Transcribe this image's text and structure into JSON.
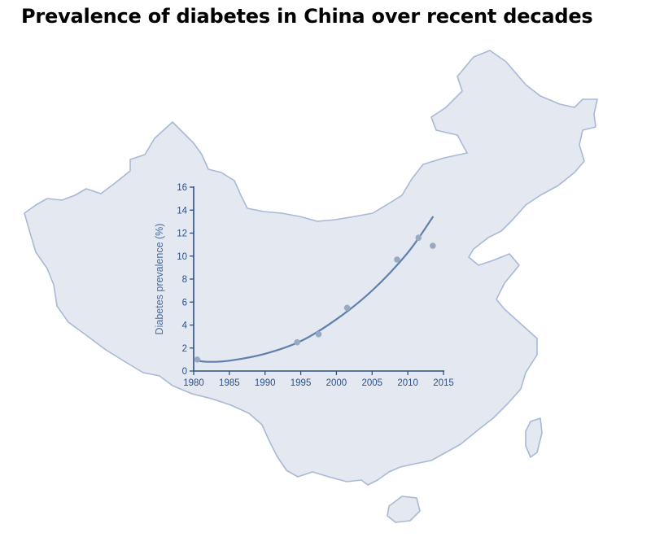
{
  "title": "Prevalence of diabetes in China over recent decades",
  "colors": {
    "map_fill": "#e3e8f1",
    "map_stroke": "#a9b9d5",
    "axis": "#2d4f86",
    "curve": "#5f7fad",
    "points": "#9aa9c2"
  },
  "chart_data": {
    "type": "scatter",
    "title": "",
    "xlabel": "",
    "ylabel": "Diabetes prevalence (%)",
    "xlim": [
      1980,
      2015
    ],
    "ylim": [
      0,
      16
    ],
    "x_ticks": [
      1980,
      1985,
      1990,
      1995,
      2000,
      2005,
      2010,
      2015
    ],
    "y_ticks": [
      0,
      2,
      4,
      6,
      8,
      10,
      12,
      14,
      16
    ],
    "points": [
      {
        "x": 1980.5,
        "y": 1.0
      },
      {
        "x": 1994.5,
        "y": 2.5
      },
      {
        "x": 1997.5,
        "y": 3.2
      },
      {
        "x": 2001.5,
        "y": 5.5
      },
      {
        "x": 2008.5,
        "y": 9.7
      },
      {
        "x": 2011.5,
        "y": 11.6
      },
      {
        "x": 2013.5,
        "y": 10.9
      }
    ],
    "trend_line": [
      {
        "x": 1980.5,
        "y": 0.9
      },
      {
        "x": 1982,
        "y": 0.8
      },
      {
        "x": 1985,
        "y": 0.9
      },
      {
        "x": 1990,
        "y": 1.5
      },
      {
        "x": 1995,
        "y": 2.6
      },
      {
        "x": 2000,
        "y": 4.5
      },
      {
        "x": 2005,
        "y": 7.0
      },
      {
        "x": 2010,
        "y": 10.3
      },
      {
        "x": 2013.5,
        "y": 13.4
      }
    ],
    "grid": false,
    "legend": "none"
  }
}
